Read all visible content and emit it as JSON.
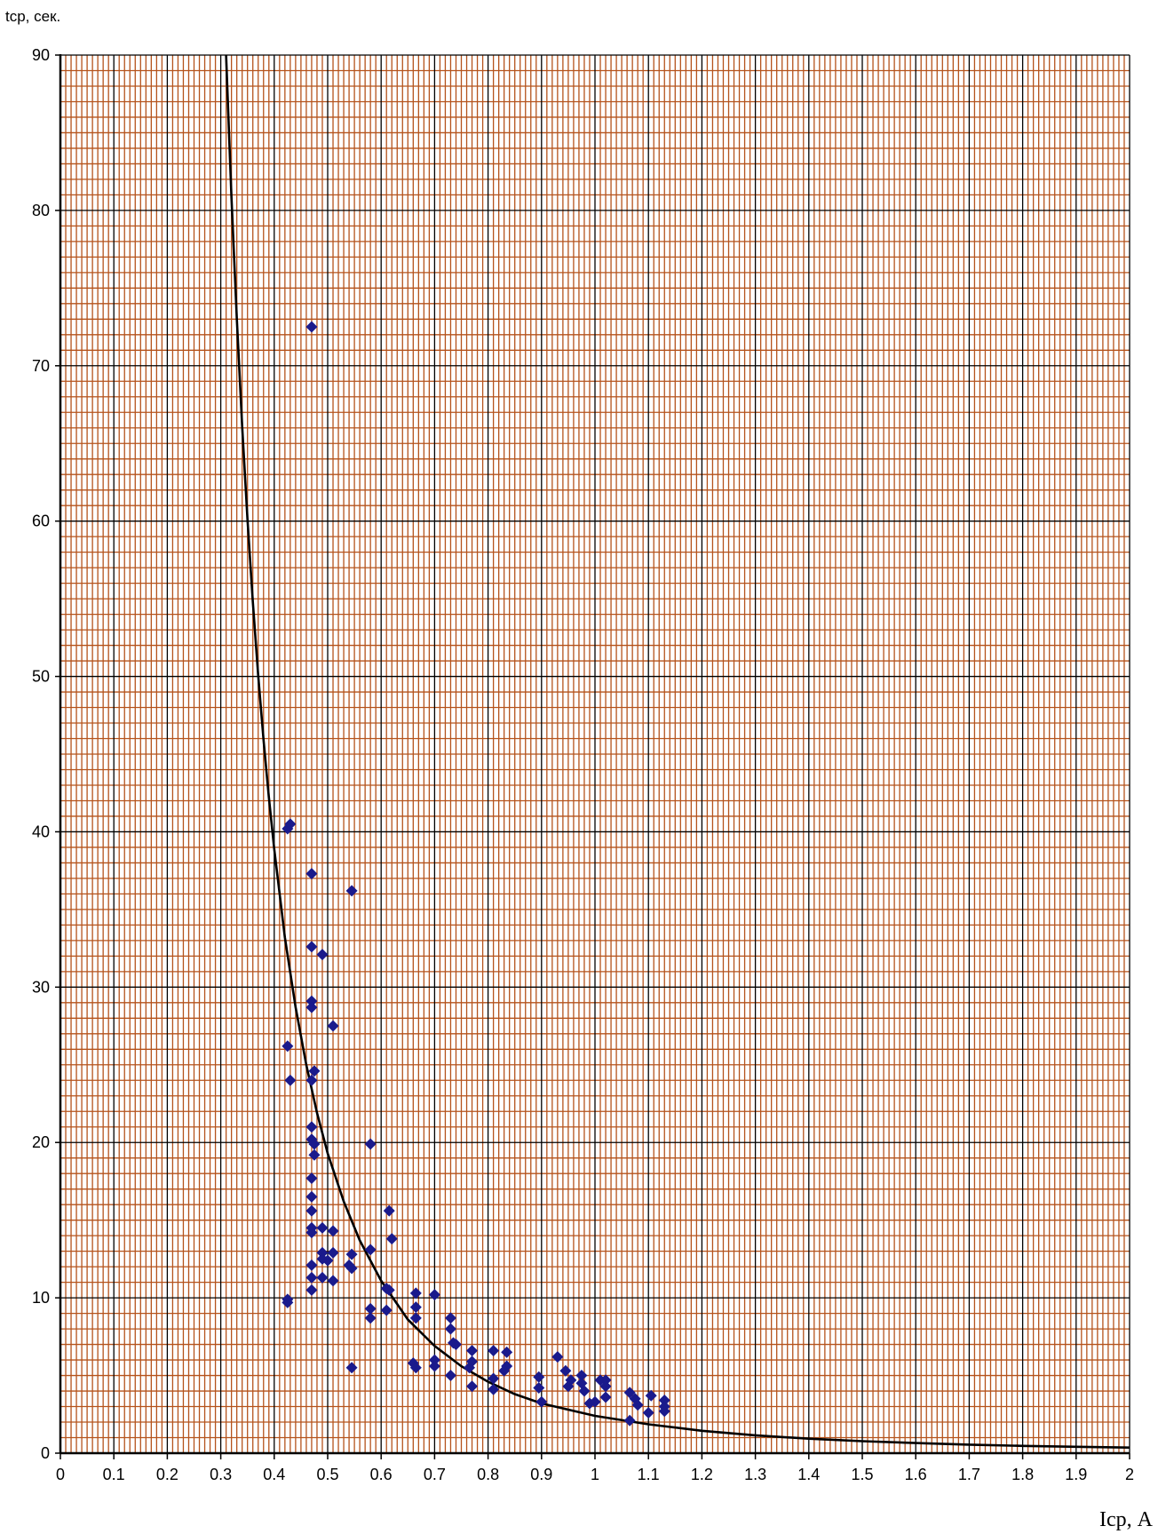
{
  "chart_data": {
    "type": "scatter",
    "ylabel": "tср, сек.",
    "xlabel": "Iср, А",
    "xlim": [
      0,
      2
    ],
    "ylim": [
      0,
      90
    ],
    "x_ticks": [
      "0",
      "0.1",
      "0.2",
      "0.3",
      "0.4",
      "0.5",
      "0.6",
      "0.7",
      "0.8",
      "0.9",
      "1",
      "1.1",
      "1.2",
      "1.3",
      "1.4",
      "1.5",
      "1.6",
      "1.7",
      "1.8",
      "1.9",
      "2"
    ],
    "y_ticks": [
      "0",
      "10",
      "20",
      "30",
      "40",
      "50",
      "60",
      "70",
      "80",
      "90"
    ],
    "grid": true,
    "grid_major_color": "#000000",
    "grid_minor_color": "#b5531c",
    "point_color": "#1a1a8c",
    "curve_color": "#000000",
    "series": [
      {
        "type": "scatter",
        "points": [
          [
            0.47,
            72.5
          ],
          [
            0.425,
            40.2
          ],
          [
            0.43,
            40.5
          ],
          [
            0.47,
            37.3
          ],
          [
            0.545,
            36.2
          ],
          [
            0.47,
            32.6
          ],
          [
            0.49,
            32.1
          ],
          [
            0.47,
            29.1
          ],
          [
            0.47,
            28.7
          ],
          [
            0.51,
            27.5
          ],
          [
            0.425,
            26.2
          ],
          [
            0.475,
            24.6
          ],
          [
            0.47,
            24.0
          ],
          [
            0.43,
            24.0
          ],
          [
            0.47,
            21.0
          ],
          [
            0.47,
            20.2
          ],
          [
            0.475,
            19.9
          ],
          [
            0.58,
            19.9
          ],
          [
            0.475,
            19.2
          ],
          [
            0.47,
            17.7
          ],
          [
            0.47,
            16.5
          ],
          [
            0.47,
            15.6
          ],
          [
            0.615,
            15.6
          ],
          [
            0.47,
            14.5
          ],
          [
            0.49,
            14.5
          ],
          [
            0.51,
            14.3
          ],
          [
            0.47,
            14.2
          ],
          [
            0.62,
            13.8
          ],
          [
            0.58,
            13.1
          ],
          [
            0.49,
            12.9
          ],
          [
            0.51,
            12.9
          ],
          [
            0.545,
            12.8
          ],
          [
            0.49,
            12.5
          ],
          [
            0.5,
            12.4
          ],
          [
            0.54,
            12.1
          ],
          [
            0.545,
            11.9
          ],
          [
            0.47,
            12.1
          ],
          [
            0.47,
            11.3
          ],
          [
            0.49,
            11.3
          ],
          [
            0.51,
            11.1
          ],
          [
            0.61,
            10.6
          ],
          [
            0.615,
            10.5
          ],
          [
            0.47,
            10.5
          ],
          [
            0.665,
            10.3
          ],
          [
            0.7,
            10.2
          ],
          [
            0.425,
            9.9
          ],
          [
            0.425,
            9.7
          ],
          [
            0.58,
            9.3
          ],
          [
            0.61,
            9.2
          ],
          [
            0.665,
            9.4
          ],
          [
            0.58,
            8.7
          ],
          [
            0.665,
            8.7
          ],
          [
            0.73,
            8.7
          ],
          [
            0.73,
            8.0
          ],
          [
            0.735,
            7.1
          ],
          [
            0.74,
            7.0
          ],
          [
            0.77,
            6.6
          ],
          [
            0.81,
            6.6
          ],
          [
            0.835,
            6.5
          ],
          [
            0.93,
            6.2
          ],
          [
            0.7,
            6.0
          ],
          [
            0.66,
            5.8
          ],
          [
            0.77,
            5.9
          ],
          [
            0.7,
            5.6
          ],
          [
            0.665,
            5.5
          ],
          [
            0.545,
            5.5
          ],
          [
            0.765,
            5.5
          ],
          [
            0.835,
            5.6
          ],
          [
            0.83,
            5.3
          ],
          [
            0.945,
            5.3
          ],
          [
            0.73,
            5.0
          ],
          [
            0.81,
            4.8
          ],
          [
            0.895,
            4.9
          ],
          [
            0.955,
            4.7
          ],
          [
            0.975,
            5.0
          ],
          [
            1.01,
            4.7
          ],
          [
            1.02,
            4.7
          ],
          [
            0.975,
            4.5
          ],
          [
            0.95,
            4.3
          ],
          [
            0.77,
            4.3
          ],
          [
            0.81,
            4.1
          ],
          [
            0.895,
            4.2
          ],
          [
            0.98,
            4.0
          ],
          [
            1.02,
            4.3
          ],
          [
            1.065,
            3.9
          ],
          [
            1.105,
            3.7
          ],
          [
            1.02,
            3.6
          ],
          [
            1.075,
            3.5
          ],
          [
            1.13,
            3.4
          ],
          [
            0.9,
            3.3
          ],
          [
            0.99,
            3.2
          ],
          [
            1.0,
            3.3
          ],
          [
            1.08,
            3.1
          ],
          [
            1.13,
            3.0
          ],
          [
            1.1,
            2.6
          ],
          [
            1.13,
            2.7
          ],
          [
            1.065,
            2.1
          ]
        ]
      },
      {
        "type": "line",
        "points": [
          [
            0.31,
            90.0
          ],
          [
            0.32,
            80.9
          ],
          [
            0.33,
            73.0
          ],
          [
            0.34,
            66.1
          ],
          [
            0.35,
            60.1
          ],
          [
            0.36,
            54.8
          ],
          [
            0.37,
            50.1
          ],
          [
            0.38,
            45.9
          ],
          [
            0.39,
            42.2
          ],
          [
            0.4,
            38.9
          ],
          [
            0.42,
            33.2
          ],
          [
            0.44,
            28.7
          ],
          [
            0.46,
            25.0
          ],
          [
            0.48,
            21.9
          ],
          [
            0.5,
            19.3
          ],
          [
            0.53,
            16.2
          ],
          [
            0.56,
            13.7
          ],
          [
            0.6,
            11.1
          ],
          [
            0.65,
            8.6
          ],
          [
            0.7,
            6.9
          ],
          [
            0.75,
            5.6
          ],
          [
            0.8,
            4.6
          ],
          [
            0.85,
            3.8
          ],
          [
            0.9,
            3.2
          ],
          [
            0.95,
            2.8
          ],
          [
            1.0,
            2.4
          ],
          [
            1.1,
            1.86
          ],
          [
            1.2,
            1.44
          ],
          [
            1.3,
            1.15
          ],
          [
            1.4,
            0.93
          ],
          [
            1.5,
            0.77
          ],
          [
            1.6,
            0.65
          ],
          [
            1.7,
            0.55
          ],
          [
            1.8,
            0.47
          ],
          [
            1.9,
            0.41
          ],
          [
            2.0,
            0.36
          ]
        ]
      }
    ]
  }
}
